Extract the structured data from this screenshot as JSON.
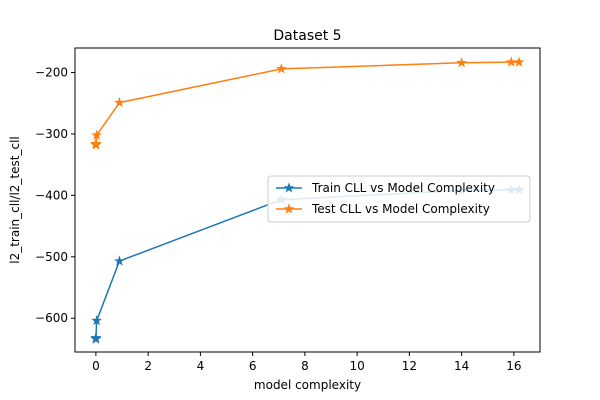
{
  "chart_data": {
    "type": "line",
    "title": "Dataset 5",
    "xlabel": "model complexity",
    "ylabel": "l2_train_cll/l2_test_cll",
    "xlim": [
      -0.8,
      17.0
    ],
    "ylim": [
      -655,
      -160
    ],
    "xticks": [
      0,
      2,
      4,
      6,
      8,
      10,
      12,
      14,
      16
    ],
    "yticks": [
      -600,
      -500,
      -400,
      -300,
      -200
    ],
    "grid": false,
    "legend": "center-right",
    "series": [
      {
        "name": "Train CLL vs Model Complexity",
        "color": "#1f77b4",
        "marker": "star",
        "x": [
          0.0,
          0.0,
          0.0,
          0.03,
          0.9,
          7.1,
          14.0,
          15.9,
          16.2
        ],
        "y": [
          -634,
          -633,
          -632,
          -604,
          -507,
          -407,
          -392,
          -391,
          -391
        ]
      },
      {
        "name": "Test CLL vs Model Complexity",
        "color": "#ff7f0e",
        "marker": "star",
        "x": [
          0.0,
          0.0,
          0.0,
          0.03,
          0.9,
          7.1,
          14.0,
          15.9,
          16.2
        ],
        "y": [
          -318,
          -317,
          -316,
          -302,
          -249,
          -194,
          -184,
          -183,
          -183
        ]
      }
    ]
  }
}
